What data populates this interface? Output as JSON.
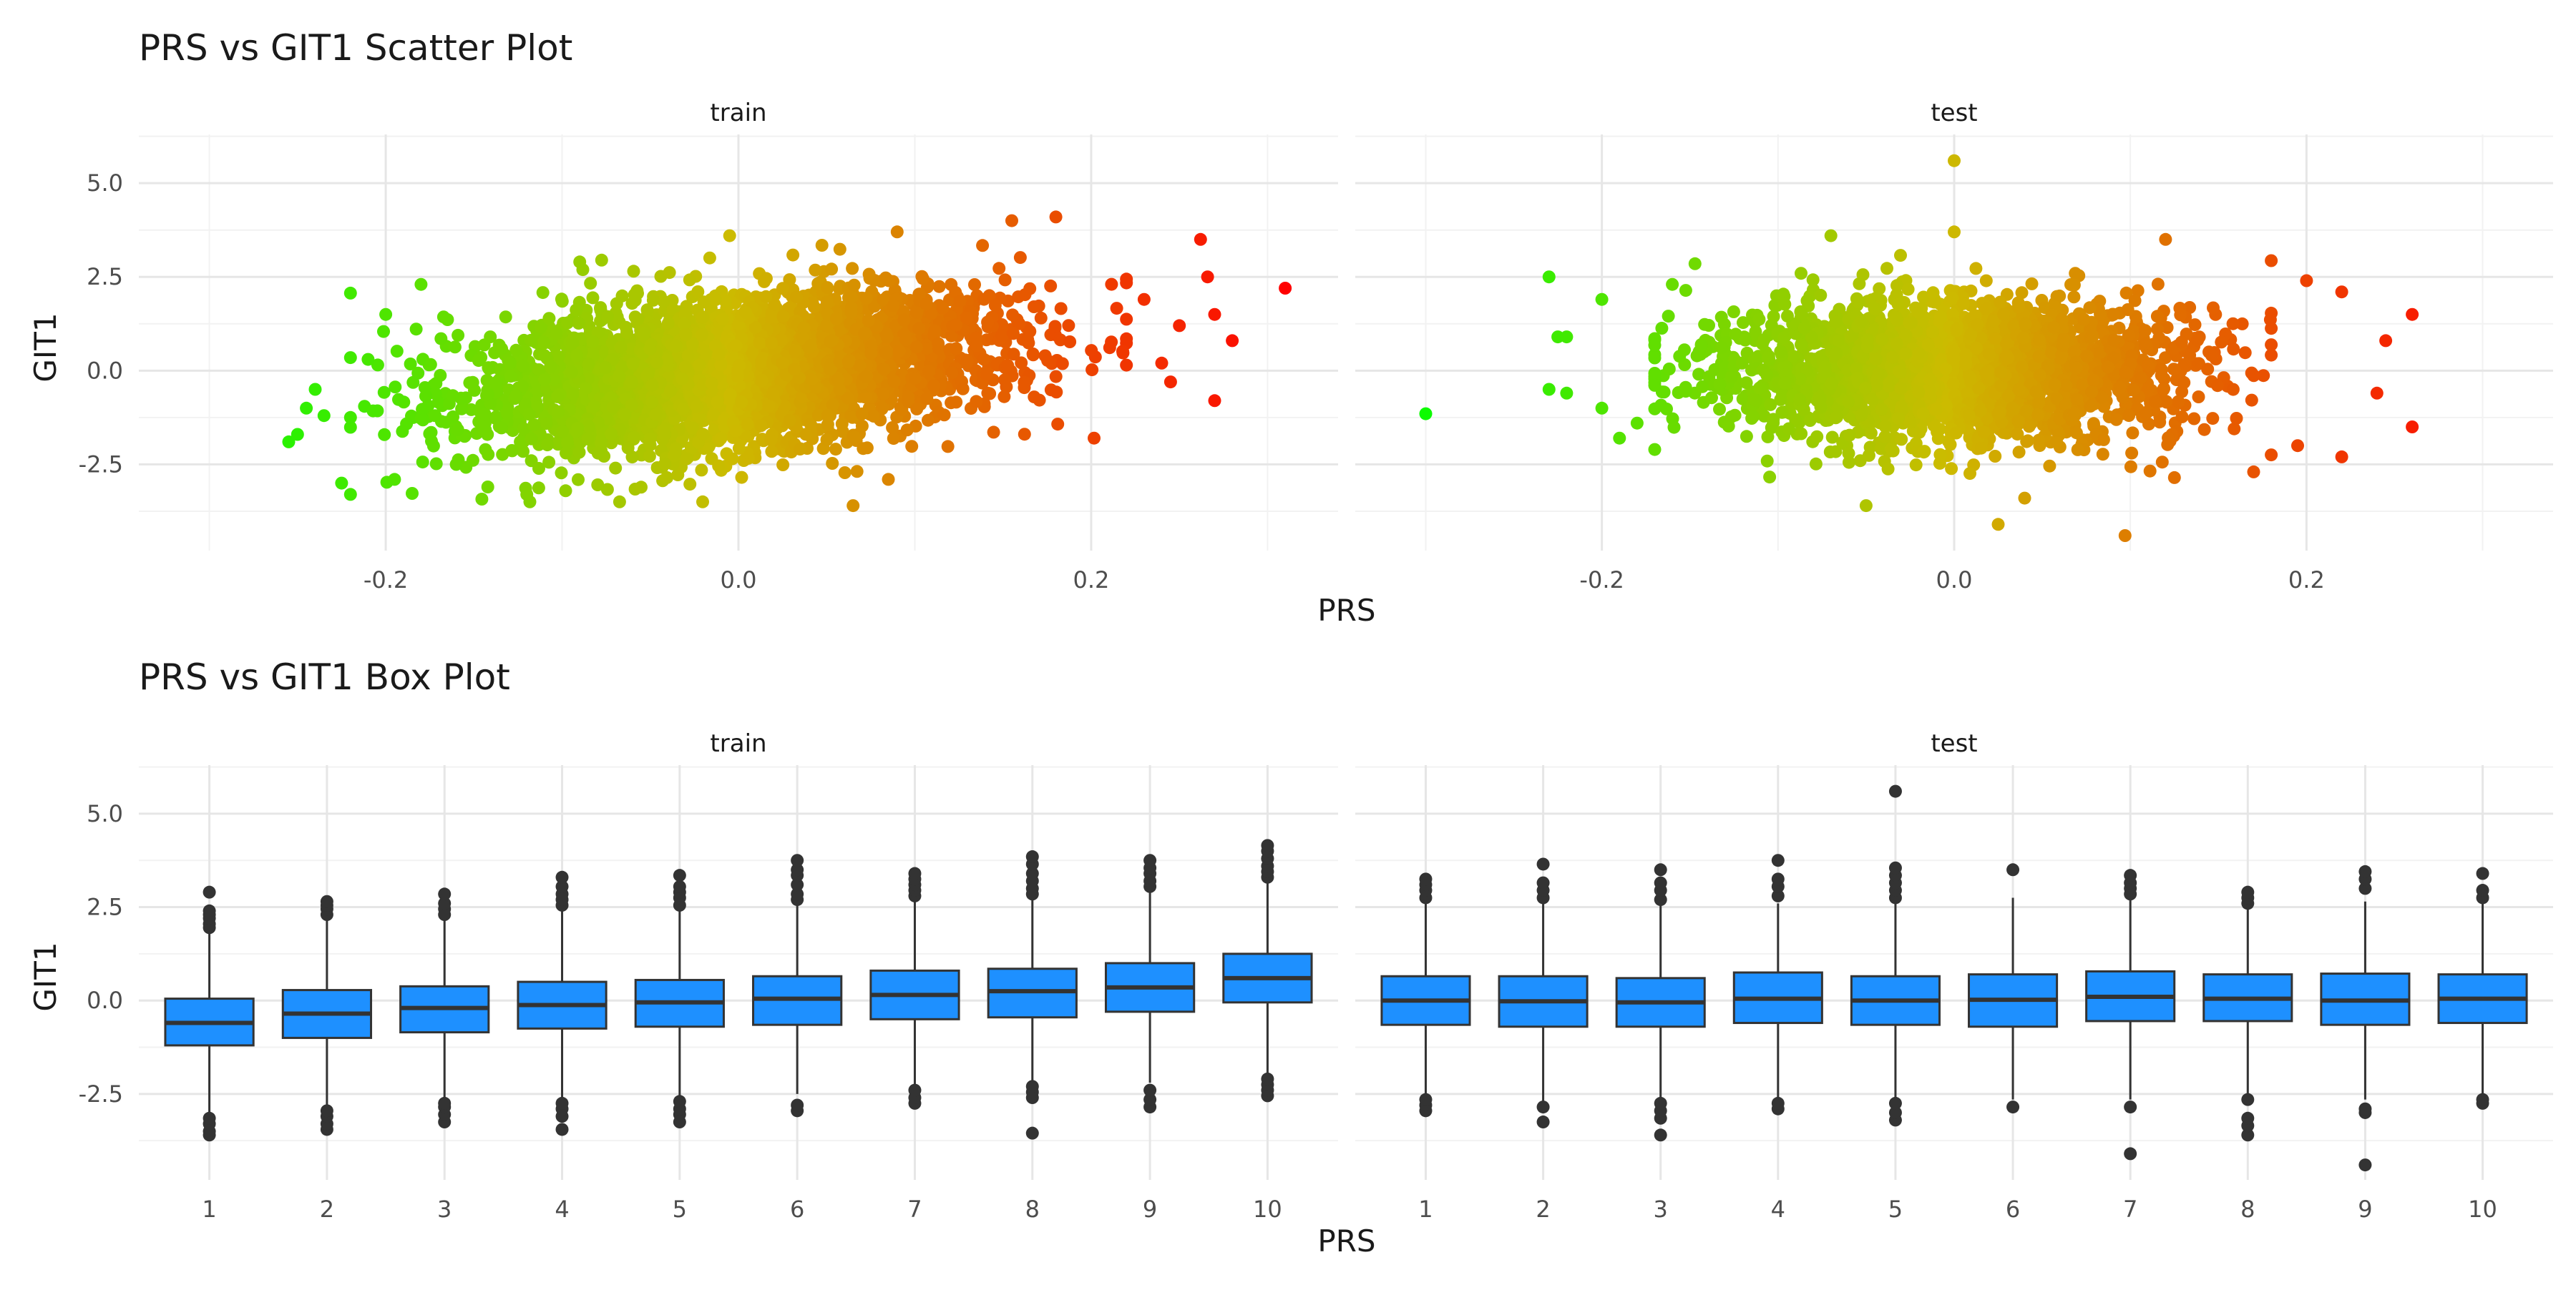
{
  "chart_data": [
    {
      "type": "scatter",
      "title": "PRS vs GIT1 Scatter Plot",
      "xlabel": "PRS",
      "ylabel": "GIT1",
      "x_ticks": [
        "-0.2",
        "0.0",
        "0.2"
      ],
      "y_ticks": [
        "5.0",
        "2.5",
        "0.0",
        "-2.5"
      ],
      "xlim": [
        -0.34,
        0.34
      ],
      "ylim": [
        -4.8,
        6.3
      ],
      "grid": true,
      "legend": "none",
      "color_scale": {
        "low": "#00ff00",
        "mid": "#ccbb00",
        "high": "#ff0000",
        "low_value": -0.32,
        "high_value": 0.31
      },
      "facets": [
        {
          "label": "train",
          "bulk": {
            "n": 3400,
            "x_mean": 0.0,
            "x_sd": 0.075,
            "x_min": -0.22,
            "x_max": 0.22,
            "slope": 5.0,
            "y_sd": 1.0,
            "y_min": -3.5,
            "y_max": 3.8
          },
          "points": [
            {
              "x": 0.31,
              "y": 2.2
            },
            {
              "x": 0.28,
              "y": 0.8
            },
            {
              "x": 0.27,
              "y": 1.5
            },
            {
              "x": 0.266,
              "y": 2.5
            },
            {
              "x": 0.27,
              "y": -0.8
            },
            {
              "x": 0.262,
              "y": 3.5
            },
            {
              "x": 0.18,
              "y": 4.1
            },
            {
              "x": 0.155,
              "y": 4.0
            },
            {
              "x": 0.25,
              "y": 1.2
            },
            {
              "x": 0.24,
              "y": 0.2
            },
            {
              "x": 0.245,
              "y": -0.3
            },
            {
              "x": 0.23,
              "y": 1.9
            },
            {
              "x": -0.255,
              "y": -1.9
            },
            {
              "x": -0.25,
              "y": -1.7
            },
            {
              "x": -0.245,
              "y": -1.0
            },
            {
              "x": -0.24,
              "y": -0.5
            },
            {
              "x": -0.235,
              "y": -1.2
            },
            {
              "x": -0.22,
              "y": -3.3
            },
            {
              "x": -0.225,
              "y": -3.0
            },
            {
              "x": -0.2,
              "y": 1.5
            },
            {
              "x": -0.195,
              "y": -2.9
            },
            {
              "x": -0.18,
              "y": 2.3
            },
            {
              "x": -0.21,
              "y": 0.3
            },
            {
              "x": 0.065,
              "y": -3.6
            },
            {
              "x": 0.085,
              "y": -2.9
            },
            {
              "x": -0.12,
              "y": -3.3
            },
            {
              "x": -0.16,
              "y": -2.5
            },
            {
              "x": -0.005,
              "y": 3.6
            },
            {
              "x": 0.09,
              "y": 3.7
            },
            {
              "x": -0.09,
              "y": 2.9
            }
          ]
        },
        {
          "label": "test",
          "bulk": {
            "n": 2600,
            "x_mean": 0.0,
            "x_sd": 0.065,
            "x_min": -0.17,
            "x_max": 0.18,
            "slope": 0.0,
            "y_sd": 0.95,
            "y_min": -3.2,
            "y_max": 3.3
          },
          "points": [
            {
              "x": -0.3,
              "y": -1.15
            },
            {
              "x": 0.0,
              "y": 5.6
            },
            {
              "x": -0.23,
              "y": 2.5
            },
            {
              "x": -0.2,
              "y": 1.9
            },
            {
              "x": -0.225,
              "y": 0.9
            },
            {
              "x": -0.22,
              "y": 0.9
            },
            {
              "x": -0.23,
              "y": -0.5
            },
            {
              "x": -0.22,
              "y": -0.6
            },
            {
              "x": -0.2,
              "y": -1.0
            },
            {
              "x": -0.19,
              "y": -1.8
            },
            {
              "x": -0.18,
              "y": -1.4
            },
            {
              "x": 0.26,
              "y": 1.5
            },
            {
              "x": 0.26,
              "y": -1.5
            },
            {
              "x": 0.245,
              "y": 0.8
            },
            {
              "x": 0.24,
              "y": -0.6
            },
            {
              "x": 0.22,
              "y": -2.3
            },
            {
              "x": 0.22,
              "y": 2.1
            },
            {
              "x": 0.2,
              "y": 2.4
            },
            {
              "x": 0.195,
              "y": -2.0
            },
            {
              "x": 0.025,
              "y": -4.1
            },
            {
              "x": 0.097,
              "y": -4.4
            },
            {
              "x": 0.04,
              "y": -3.4
            },
            {
              "x": 0.12,
              "y": 3.5
            },
            {
              "x": -0.07,
              "y": 3.6
            },
            {
              "x": -0.16,
              "y": 2.3
            },
            {
              "x": -0.05,
              "y": -3.6
            },
            {
              "x": 0.17,
              "y": -2.7
            },
            {
              "x": 0.0,
              "y": 3.7
            }
          ]
        }
      ]
    },
    {
      "type": "box",
      "title": "PRS vs GIT1 Box Plot",
      "xlabel": "PRS",
      "ylabel": "GIT1",
      "categories": [
        "1",
        "2",
        "3",
        "4",
        "5",
        "6",
        "7",
        "8",
        "9",
        "10"
      ],
      "y_ticks": [
        "5.0",
        "2.5",
        "0.0",
        "-2.5"
      ],
      "ylim": [
        -4.8,
        6.3
      ],
      "grid": true,
      "legend": "none",
      "box_color": "#1e90ff",
      "facets": [
        {
          "label": "train",
          "boxes": [
            {
              "q1": -1.2,
              "median": -0.6,
              "q3": 0.05,
              "whisker_low": -3.0,
              "whisker_high": 1.85,
              "outliers": [
                -3.6,
                -3.5,
                -3.3,
                -3.15,
                1.95,
                2.05,
                2.2,
                2.3,
                2.4,
                2.9
              ]
            },
            {
              "q1": -1.0,
              "median": -0.35,
              "q3": 0.28,
              "whisker_low": -2.8,
              "whisker_high": 2.2,
              "outliers": [
                -3.45,
                -3.3,
                -3.1,
                -2.95,
                2.3,
                2.45,
                2.55,
                2.65
              ]
            },
            {
              "q1": -0.85,
              "median": -0.2,
              "q3": 0.38,
              "whisker_low": -2.65,
              "whisker_high": 2.2,
              "outliers": [
                -3.25,
                -3.05,
                -2.85,
                -2.75,
                2.3,
                2.45,
                2.6,
                2.85
              ]
            },
            {
              "q1": -0.75,
              "median": -0.12,
              "q3": 0.5,
              "whisker_low": -2.6,
              "whisker_high": 2.4,
              "outliers": [
                -3.45,
                -3.1,
                -2.9,
                -2.75,
                2.55,
                2.7,
                2.85,
                3.05,
                3.3
              ]
            },
            {
              "q1": -0.7,
              "median": -0.05,
              "q3": 0.55,
              "whisker_low": -2.6,
              "whisker_high": 2.45,
              "outliers": [
                -3.25,
                -3.05,
                -2.9,
                -2.7,
                2.55,
                2.75,
                2.9,
                3.05,
                3.35
              ]
            },
            {
              "q1": -0.65,
              "median": 0.05,
              "q3": 0.65,
              "whisker_low": -2.5,
              "whisker_high": 2.55,
              "outliers": [
                -2.95,
                -2.8,
                2.7,
                2.85,
                3.1,
                3.35,
                3.5,
                3.75
              ]
            },
            {
              "q1": -0.5,
              "median": 0.15,
              "q3": 0.8,
              "whisker_low": -2.35,
              "whisker_high": 2.7,
              "outliers": [
                -2.75,
                -2.6,
                -2.4,
                2.8,
                2.95,
                3.1,
                3.25,
                3.4
              ]
            },
            {
              "q1": -0.45,
              "median": 0.25,
              "q3": 0.85,
              "whisker_low": -2.2,
              "whisker_high": 2.75,
              "outliers": [
                -3.55,
                -2.6,
                -2.45,
                -2.3,
                2.85,
                3.0,
                3.2,
                3.4,
                3.65,
                3.85
              ]
            },
            {
              "q1": -0.3,
              "median": 0.35,
              "q3": 1.0,
              "whisker_low": -2.2,
              "whisker_high": 2.9,
              "outliers": [
                -2.85,
                -2.65,
                -2.4,
                3.05,
                3.2,
                3.4,
                3.55,
                3.75
              ]
            },
            {
              "q1": -0.05,
              "median": 0.6,
              "q3": 1.25,
              "whisker_low": -1.95,
              "whisker_high": 3.2,
              "outliers": [
                -2.55,
                -2.4,
                -2.25,
                -2.1,
                3.3,
                3.45,
                3.6,
                3.8,
                4.0,
                4.15
              ]
            }
          ]
        },
        {
          "label": "test",
          "boxes": [
            {
              "q1": -0.65,
              "median": 0.0,
              "q3": 0.65,
              "whisker_low": -2.6,
              "whisker_high": 2.6,
              "outliers": [
                -2.95,
                -2.8,
                -2.65,
                2.75,
                2.95,
                3.1,
                3.25
              ]
            },
            {
              "q1": -0.7,
              "median": -0.02,
              "q3": 0.65,
              "whisker_low": -2.7,
              "whisker_high": 2.7,
              "outliers": [
                -3.25,
                -2.85,
                2.75,
                2.95,
                3.15,
                3.65
              ]
            },
            {
              "q1": -0.7,
              "median": -0.05,
              "q3": 0.6,
              "whisker_low": -2.6,
              "whisker_high": 2.6,
              "outliers": [
                -3.6,
                -3.15,
                -2.95,
                -2.75,
                2.7,
                2.95,
                3.15,
                3.5
              ]
            },
            {
              "q1": -0.6,
              "median": 0.05,
              "q3": 0.75,
              "whisker_low": -2.6,
              "whisker_high": 2.6,
              "outliers": [
                -2.9,
                -2.75,
                2.8,
                3.05,
                3.25,
                3.75
              ]
            },
            {
              "q1": -0.65,
              "median": 0.0,
              "q3": 0.65,
              "whisker_low": -2.6,
              "whisker_high": 2.6,
              "outliers": [
                -3.2,
                -3.0,
                -2.75,
                2.75,
                2.95,
                3.15,
                3.35,
                3.55,
                5.6
              ]
            },
            {
              "q1": -0.7,
              "median": 0.02,
              "q3": 0.7,
              "whisker_low": -2.65,
              "whisker_high": 2.75,
              "outliers": [
                -2.85,
                3.5
              ]
            },
            {
              "q1": -0.55,
              "median": 0.1,
              "q3": 0.78,
              "whisker_low": -2.65,
              "whisker_high": 2.75,
              "outliers": [
                -4.1,
                -2.85,
                2.85,
                3.0,
                3.15,
                3.35
              ]
            },
            {
              "q1": -0.55,
              "median": 0.05,
              "q3": 0.7,
              "whisker_low": -2.5,
              "whisker_high": 2.5,
              "outliers": [
                -3.6,
                -3.35,
                -3.15,
                -2.65,
                2.6,
                2.75,
                2.9
              ]
            },
            {
              "q1": -0.65,
              "median": 0.0,
              "q3": 0.72,
              "whisker_low": -2.65,
              "whisker_high": 2.65,
              "outliers": [
                -4.4,
                -3.0,
                -2.9,
                3.0,
                3.25,
                3.45
              ]
            },
            {
              "q1": -0.6,
              "median": 0.05,
              "q3": 0.7,
              "whisker_low": -2.6,
              "whisker_high": 2.6,
              "outliers": [
                -2.75,
                -2.65,
                2.75,
                2.95,
                3.4
              ]
            }
          ]
        }
      ]
    }
  ]
}
